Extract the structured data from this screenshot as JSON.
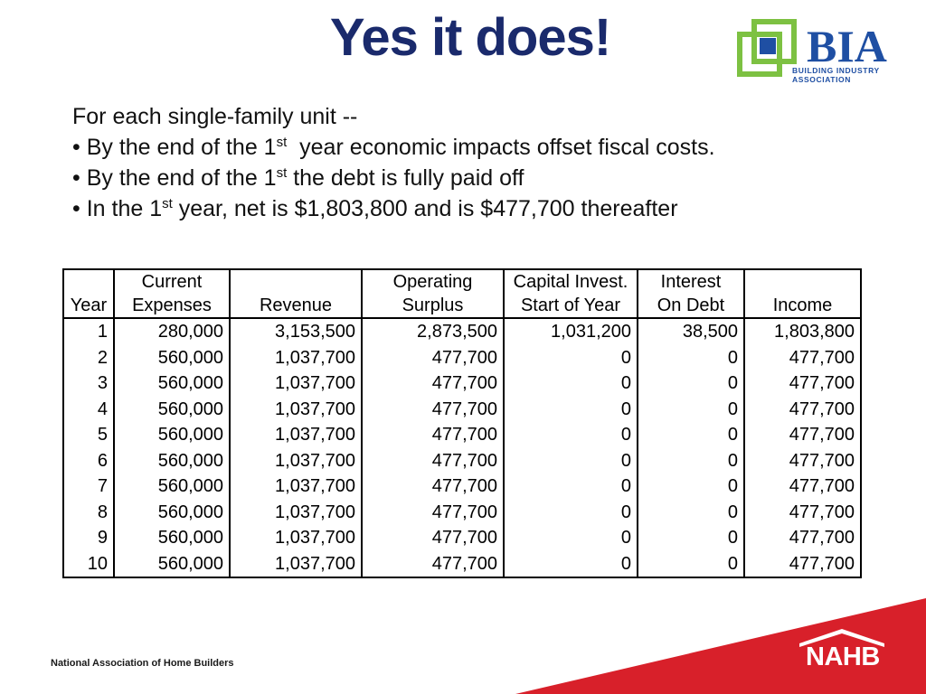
{
  "title": "Yes it does!",
  "logo": {
    "brand": "BIA",
    "line1": "BUILDING INDUSTRY",
    "line2": "ASSOCIATION",
    "blue": "#1f4fa3",
    "green": "#7dc142"
  },
  "intro": "For each single-family unit --",
  "bullets": [
    {
      "pre": "• By the end of the 1",
      "sup": "st",
      "post": "  year economic impacts offset fiscal costs."
    },
    {
      "pre": "• By the end of the 1",
      "sup": "st",
      "post": " the debt is fully paid off"
    },
    {
      "pre": "• In the 1",
      "sup": "st",
      "post": " year, net is $1,803,800 and is $477,700 thereafter"
    }
  ],
  "table": {
    "headers": [
      {
        "line1": "",
        "line2": "Year"
      },
      {
        "line1": "Current",
        "line2": "Expenses"
      },
      {
        "line1": "",
        "line2": "Revenue"
      },
      {
        "line1": "Operating",
        "line2": "Surplus"
      },
      {
        "line1": "Capital Invest.",
        "line2": "Start of Year"
      },
      {
        "line1": "Interest",
        "line2": "On Debt"
      },
      {
        "line1": "",
        "line2": "Income"
      }
    ],
    "rows": [
      [
        "1",
        "280,000",
        "3,153,500",
        "2,873,500",
        "1,031,200",
        "38,500",
        "1,803,800"
      ],
      [
        "2",
        "560,000",
        "1,037,700",
        "477,700",
        "0",
        "0",
        "477,700"
      ],
      [
        "3",
        "560,000",
        "1,037,700",
        "477,700",
        "0",
        "0",
        "477,700"
      ],
      [
        "4",
        "560,000",
        "1,037,700",
        "477,700",
        "0",
        "0",
        "477,700"
      ],
      [
        "5",
        "560,000",
        "1,037,700",
        "477,700",
        "0",
        "0",
        "477,700"
      ],
      [
        "6",
        "560,000",
        "1,037,700",
        "477,700",
        "0",
        "0",
        "477,700"
      ],
      [
        "7",
        "560,000",
        "1,037,700",
        "477,700",
        "0",
        "0",
        "477,700"
      ],
      [
        "8",
        "560,000",
        "1,037,700",
        "477,700",
        "0",
        "0",
        "477,700"
      ],
      [
        "9",
        "560,000",
        "1,037,700",
        "477,700",
        "0",
        "0",
        "477,700"
      ],
      [
        "10",
        "560,000",
        "1,037,700",
        "477,700",
        "0",
        "0",
        "477,700"
      ]
    ]
  },
  "footer": {
    "organization": "National Association of Home Builders",
    "nahb_logo": "NAHB",
    "band_color": "#d8202a"
  }
}
